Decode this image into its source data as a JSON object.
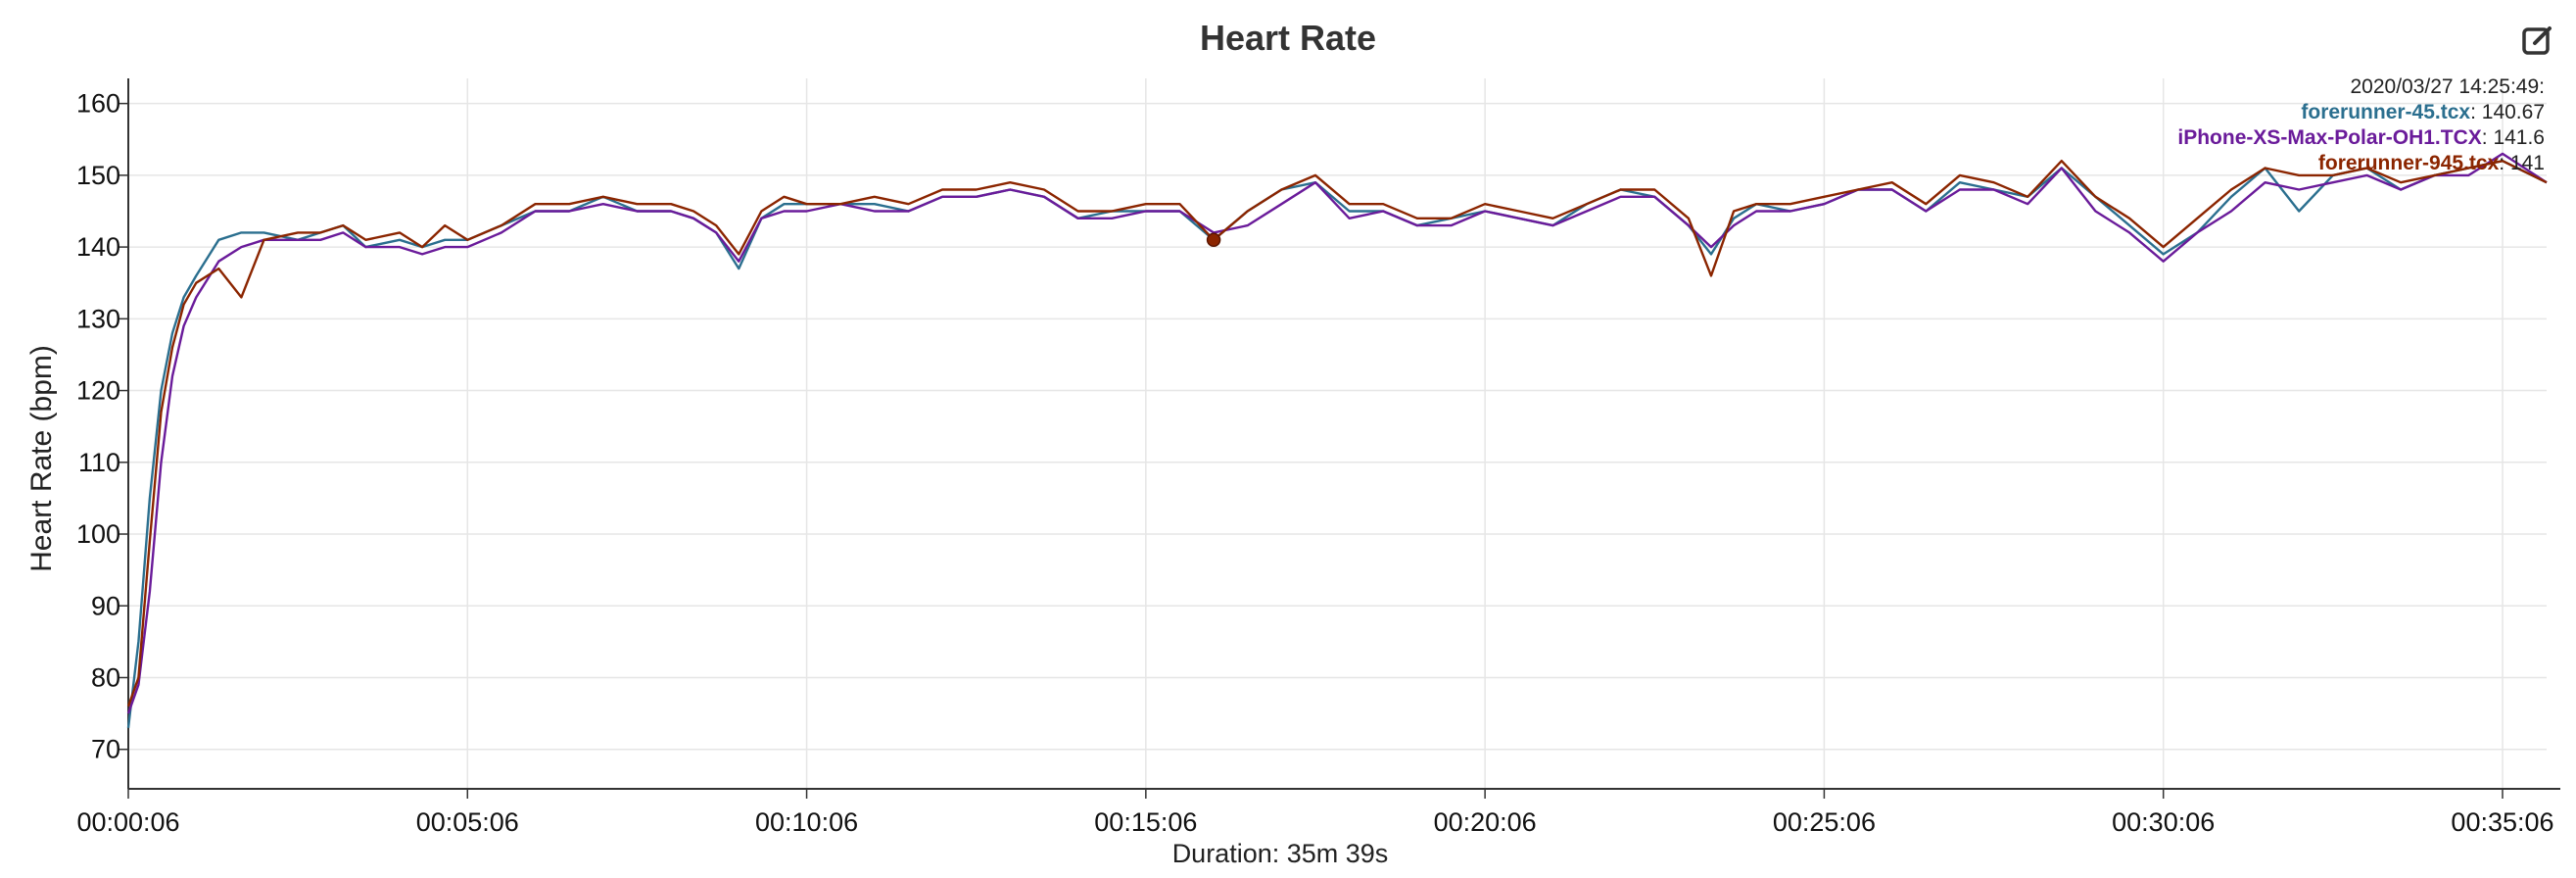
{
  "chart_data": {
    "type": "line",
    "title": "Heart Rate",
    "ylabel": "Heart Rate (bpm)",
    "xlabel": "Duration: 35m 39s",
    "ylim": [
      64.5,
      163.5
    ],
    "yticks": [
      70,
      80,
      90,
      100,
      110,
      120,
      130,
      140,
      150,
      160
    ],
    "xlim_seconds": [
      6,
      2145
    ],
    "xtick_labels": [
      "00:00:06",
      "00:05:06",
      "00:10:06",
      "00:15:06",
      "00:20:06",
      "00:25:06",
      "00:30:06",
      "00:35:06"
    ],
    "grid": true,
    "x": [
      "00:00:06",
      "00:00:15",
      "00:00:25",
      "00:00:35",
      "00:00:45",
      "00:00:55",
      "00:01:06",
      "00:01:26",
      "00:01:46",
      "00:02:06",
      "00:02:36",
      "00:02:56",
      "00:03:16",
      "00:03:36",
      "00:04:06",
      "00:04:26",
      "00:04:46",
      "00:05:06",
      "00:05:36",
      "00:06:06",
      "00:06:36",
      "00:07:06",
      "00:07:36",
      "00:08:06",
      "00:08:26",
      "00:08:46",
      "00:09:06",
      "00:09:26",
      "00:09:46",
      "00:10:06",
      "00:10:36",
      "00:11:06",
      "00:11:36",
      "00:12:06",
      "00:12:36",
      "00:13:06",
      "00:13:36",
      "00:14:06",
      "00:14:36",
      "00:15:06",
      "00:15:36",
      "00:16:06",
      "00:16:36",
      "00:17:06",
      "00:17:36",
      "00:18:06",
      "00:18:36",
      "00:19:06",
      "00:19:36",
      "00:20:06",
      "00:20:36",
      "00:21:06",
      "00:21:36",
      "00:22:06",
      "00:22:36",
      "00:23:06",
      "00:23:26",
      "00:23:46",
      "00:24:06",
      "00:24:36",
      "00:25:06",
      "00:25:36",
      "00:26:06",
      "00:26:36",
      "00:27:06",
      "00:27:36",
      "00:28:06",
      "00:28:36",
      "00:29:06",
      "00:29:36",
      "00:30:06",
      "00:30:36",
      "00:31:06",
      "00:31:36",
      "00:32:06",
      "00:32:36",
      "00:33:06",
      "00:33:36",
      "00:34:06",
      "00:34:36",
      "00:35:06",
      "00:35:45"
    ],
    "series": [
      {
        "name": "forerunner-45.tcx",
        "color": "#2b6f8f",
        "values": [
          73,
          85,
          105,
          120,
          128,
          133,
          136,
          141,
          142,
          142,
          141,
          142,
          143,
          140,
          141,
          140,
          141,
          141,
          143,
          145,
          145,
          147,
          145,
          145,
          144,
          142,
          137,
          144,
          146,
          146,
          146,
          146,
          145,
          147,
          147,
          148,
          147,
          144,
          145,
          145,
          145,
          141,
          145,
          148,
          149,
          145,
          145,
          143,
          144,
          145,
          144,
          143,
          146,
          148,
          147,
          143,
          139,
          144,
          146,
          145,
          146,
          148,
          148,
          145,
          149,
          148,
          147,
          151,
          147,
          143,
          139,
          142,
          147,
          151,
          145,
          150,
          151,
          148,
          150,
          151,
          152,
          149
        ]
      },
      {
        "name": "iPhone-XS-Max-Polar-OH1.TCX",
        "color": "#6a1b9a",
        "values": [
          75,
          79,
          92,
          110,
          122,
          129,
          133,
          138,
          140,
          141,
          141,
          141,
          142,
          140,
          140,
          139,
          140,
          140,
          142,
          145,
          145,
          146,
          145,
          145,
          144,
          142,
          138,
          144,
          145,
          145,
          146,
          145,
          145,
          147,
          147,
          148,
          147,
          144,
          144,
          145,
          145,
          142,
          143,
          146,
          149,
          144,
          145,
          143,
          143,
          145,
          144,
          143,
          145,
          147,
          147,
          143,
          140,
          143,
          145,
          145,
          146,
          148,
          148,
          145,
          148,
          148,
          146,
          151,
          145,
          142,
          138,
          142,
          145,
          149,
          148,
          149,
          150,
          148,
          150,
          150,
          153,
          149
        ]
      },
      {
        "name": "forerunner-945.tcx",
        "color": "#8b2500",
        "values": [
          76,
          80,
          99,
          117,
          126,
          132,
          135,
          137,
          133,
          141,
          142,
          142,
          143,
          141,
          142,
          140,
          143,
          141,
          143,
          146,
          146,
          147,
          146,
          146,
          145,
          143,
          139,
          145,
          147,
          146,
          146,
          147,
          146,
          148,
          148,
          149,
          148,
          145,
          145,
          146,
          146,
          141,
          145,
          148,
          150,
          146,
          146,
          144,
          144,
          146,
          145,
          144,
          146,
          148,
          148,
          144,
          136,
          145,
          146,
          146,
          147,
          148,
          149,
          146,
          150,
          149,
          147,
          152,
          147,
          144,
          140,
          144,
          148,
          151,
          150,
          150,
          151,
          149,
          150,
          151,
          152,
          149
        ]
      }
    ],
    "marker": {
      "x": "00:16:06",
      "y": 141
    },
    "tooltip": {
      "header": "2020/03/27 14:25:49:",
      "entries": [
        {
          "name": "forerunner-45.tcx",
          "value": "140.67",
          "color": "#2b6f8f"
        },
        {
          "name": "iPhone-XS-Max-Polar-OH1.TCX",
          "value": "141.6",
          "color": "#6a1b9a"
        },
        {
          "name": "forerunner-945.tcx",
          "value": "141",
          "color": "#8b2500"
        }
      ]
    }
  },
  "toolbar": {
    "edit_icon": "edit-icon"
  }
}
